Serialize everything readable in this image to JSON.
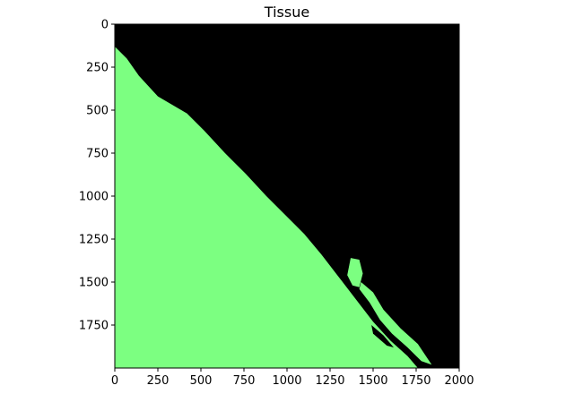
{
  "chart_data": {
    "type": "heatmap",
    "title": "Tissue",
    "xlabel": "",
    "ylabel": "",
    "xlim": [
      0,
      2000
    ],
    "ylim": [
      2000,
      0
    ],
    "x_ticks": [
      0,
      250,
      500,
      750,
      1000,
      1250,
      1500,
      1750,
      2000
    ],
    "x_tick_labels": [
      "0",
      "250",
      "500",
      "750",
      "1000",
      "1250",
      "1500",
      "1750",
      "2000"
    ],
    "y_ticks": [
      0,
      250,
      500,
      750,
      1000,
      1250,
      1500,
      1750
    ],
    "y_tick_labels": [
      "0",
      "250",
      "500",
      "750",
      "1000",
      "1250",
      "1500",
      "1750"
    ],
    "grid": false,
    "legend": "none",
    "colors": {
      "tissue": "#7cff81",
      "background": "#000000",
      "axis": "#000000"
    },
    "regions": {
      "tissue_main": [
        [
          0,
          130
        ],
        [
          70,
          200
        ],
        [
          140,
          300
        ],
        [
          250,
          420
        ],
        [
          420,
          520
        ],
        [
          520,
          620
        ],
        [
          640,
          750
        ],
        [
          760,
          870
        ],
        [
          880,
          1000
        ],
        [
          1000,
          1120
        ],
        [
          1100,
          1220
        ],
        [
          1200,
          1340
        ],
        [
          1300,
          1470
        ],
        [
          1400,
          1600
        ],
        [
          1500,
          1730
        ],
        [
          1600,
          1840
        ],
        [
          1700,
          1930
        ],
        [
          1760,
          2000
        ],
        [
          0,
          2000
        ]
      ],
      "tissue_islet_1": [
        [
          1370,
          1360
        ],
        [
          1420,
          1370
        ],
        [
          1440,
          1450
        ],
        [
          1420,
          1530
        ],
        [
          1380,
          1520
        ],
        [
          1350,
          1460
        ]
      ],
      "tissue_islet_2": [
        [
          1430,
          1500
        ],
        [
          1500,
          1560
        ],
        [
          1560,
          1660
        ],
        [
          1660,
          1770
        ],
        [
          1760,
          1860
        ],
        [
          1840,
          1980
        ],
        [
          1780,
          1960
        ],
        [
          1700,
          1880
        ],
        [
          1610,
          1800
        ],
        [
          1540,
          1720
        ],
        [
          1480,
          1620
        ],
        [
          1420,
          1540
        ]
      ],
      "gap": [
        [
          1490,
          1750
        ],
        [
          1560,
          1810
        ],
        [
          1620,
          1880
        ],
        [
          1580,
          1870
        ],
        [
          1500,
          1800
        ]
      ]
    }
  }
}
